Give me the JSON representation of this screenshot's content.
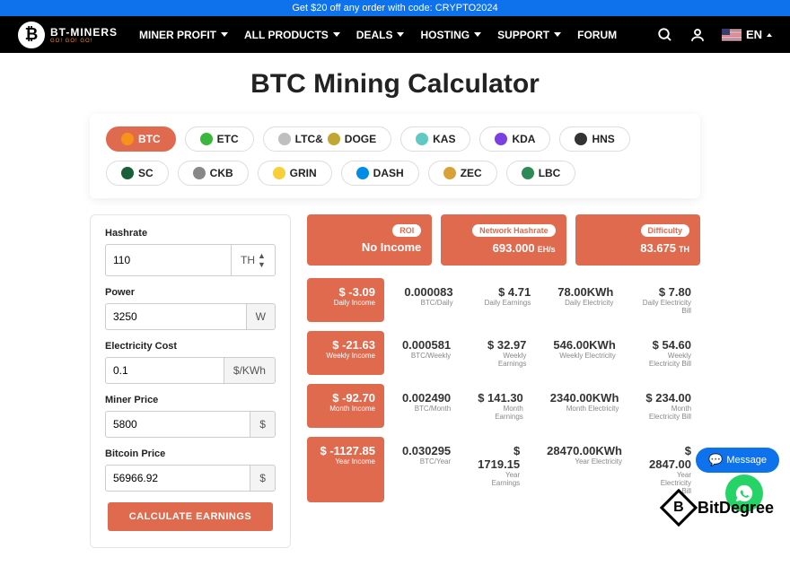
{
  "promo": "Get $20 off any order with code: CRYPTO2024",
  "brand": {
    "name": "BT-MINERS",
    "tagline": "GO! GO! GO!"
  },
  "nav": {
    "items": [
      "MINER PROFIT",
      "ALL PRODUCTS",
      "DEALS",
      "HOSTING",
      "SUPPORT"
    ],
    "forum": "FORUM",
    "lang": "EN"
  },
  "title": "BTC Mining Calculator",
  "coins": [
    {
      "label": "BTC",
      "active": true,
      "icon": "ci-btc"
    },
    {
      "label": "ETC",
      "icon": "ci-etc"
    },
    {
      "label": "LTC&",
      "icon": "ci-ltc",
      "label2": "DOGE",
      "icon2": "ci-doge"
    },
    {
      "label": "KAS",
      "icon": "ci-kas"
    },
    {
      "label": "KDA",
      "icon": "ci-kda",
      "bold": true
    },
    {
      "label": "HNS",
      "icon": "ci-hns"
    },
    {
      "label": "SC",
      "icon": "ci-sc"
    },
    {
      "label": "CKB",
      "icon": "ci-ckb"
    },
    {
      "label": "GRIN",
      "icon": "ci-grin"
    },
    {
      "label": "DASH",
      "icon": "ci-dash"
    },
    {
      "label": "ZEC",
      "icon": "ci-zec"
    },
    {
      "label": "LBC",
      "icon": "ci-lbc"
    }
  ],
  "form": {
    "hashrate": {
      "label": "Hashrate",
      "value": "110",
      "unit": "TH"
    },
    "power": {
      "label": "Power",
      "value": "3250",
      "unit": "W"
    },
    "electricity": {
      "label": "Electricity Cost",
      "value": "0.1",
      "unit": "$/KWh"
    },
    "miner_price": {
      "label": "Miner Price",
      "value": "5800",
      "unit": "$"
    },
    "bitcoin_price": {
      "label": "Bitcoin Price",
      "value": "56966.92",
      "unit": "$"
    },
    "button": "CALCULATE EARNINGS"
  },
  "stats": {
    "roi": {
      "badge": "ROI",
      "value": "No Income"
    },
    "hashrate": {
      "badge": "Network Hashrate",
      "value": "693.000",
      "unit": "EH/s"
    },
    "difficulty": {
      "badge": "Difficulty",
      "value": "83.675",
      "unit": "TH"
    }
  },
  "income": [
    {
      "period": "Daily",
      "income": "$ -3.09",
      "btc": "0.000083",
      "btc_lbl": "BTC/Daily",
      "earn": "$ 4.71",
      "earn_lbl": "Daily Earnings",
      "kwh": "78.00KWh",
      "kwh_lbl": "Daily Electricity",
      "bill": "$ 7.80",
      "bill_lbl": "Daily Electricity Bill"
    },
    {
      "period": "Weekly",
      "income": "$ -21.63",
      "btc": "0.000581",
      "btc_lbl": "BTC/Weekly",
      "earn": "$ 32.97",
      "earn_lbl": "Weekly Earnings",
      "kwh": "546.00KWh",
      "kwh_lbl": "Weekly Electricity",
      "bill": "$ 54.60",
      "bill_lbl": "Weekly Electricity Bill"
    },
    {
      "period": "Month",
      "income": "$ -92.70",
      "btc": "0.002490",
      "btc_lbl": "BTC/Month",
      "earn": "$ 141.30",
      "earn_lbl": "Month Earnings",
      "kwh": "2340.00KWh",
      "kwh_lbl": "Month Electricity",
      "bill": "$ 234.00",
      "bill_lbl": "Month Electricity Bill"
    },
    {
      "period": "Year",
      "income": "$ -1127.85",
      "btc": "0.030295",
      "btc_lbl": "BTC/Year",
      "earn": "$ 1719.15",
      "earn_lbl": "Year Earnings",
      "kwh": "28470.00KWh",
      "kwh_lbl": "Year Electricity",
      "bill": "$ 2847.00",
      "bill_lbl": "Year Electricity Bill"
    }
  ],
  "message_btn": "Message",
  "bitdegree": "BitDegree",
  "colors": {
    "accent": "#e06a4e",
    "nav": "#000000",
    "promo": "#0e72ed"
  }
}
